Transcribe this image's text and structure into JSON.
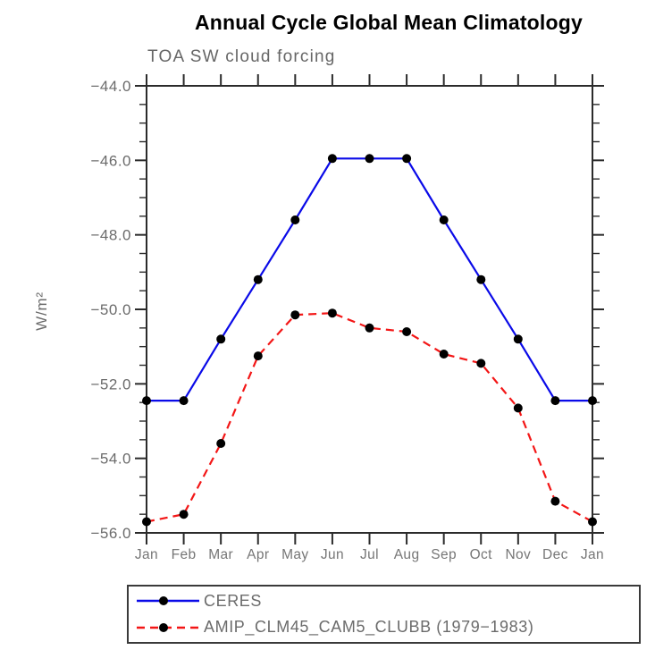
{
  "styling": {
    "background": "#ffffff",
    "title_color": "#000000",
    "axis_text_color": "#6b6b6b",
    "frame_color": "#2b2b2b"
  },
  "chart_data": {
    "type": "line",
    "title": "Annual Cycle Global Mean Climatology",
    "subtitle": "TOA SW cloud forcing",
    "ylabel": "W/m²",
    "xlabel": "",
    "categories": [
      "Jan",
      "Feb",
      "Mar",
      "Apr",
      "May",
      "Jun",
      "Jul",
      "Aug",
      "Sep",
      "Oct",
      "Nov",
      "Dec",
      "Jan"
    ],
    "ylim": [
      -56,
      -44
    ],
    "ytick_major": [
      -44,
      -46,
      -48,
      -50,
      -52,
      -54,
      -56
    ],
    "ytick_labels": [
      "−44.0",
      "−46.0",
      "−48.0",
      "−50.0",
      "−52.0",
      "−54.0",
      "−56.0"
    ],
    "ytick_minor_step": 0.5,
    "grid": false,
    "legend_position": "bottom-left-box",
    "series": [
      {
        "name": "CERES",
        "color": "#0a0ae8",
        "line_style": "solid",
        "marker": "filled-circle",
        "marker_color": "#000000",
        "values": [
          -52.45,
          -52.45,
          -50.8,
          -49.2,
          -47.6,
          -45.95,
          -45.95,
          -45.95,
          -47.6,
          -49.2,
          -50.8,
          -52.45,
          -52.45
        ]
      },
      {
        "name": "AMIP_CLM45_CAM5_CLUBB (1979−1983)",
        "color": "#f31616",
        "line_style": "dashed",
        "marker": "filled-circle",
        "marker_color": "#000000",
        "values": [
          -55.7,
          -55.5,
          -53.6,
          -51.25,
          -50.15,
          -50.1,
          -50.5,
          -50.6,
          -51.2,
          -51.45,
          -52.65,
          -55.15,
          -55.7
        ]
      }
    ]
  }
}
